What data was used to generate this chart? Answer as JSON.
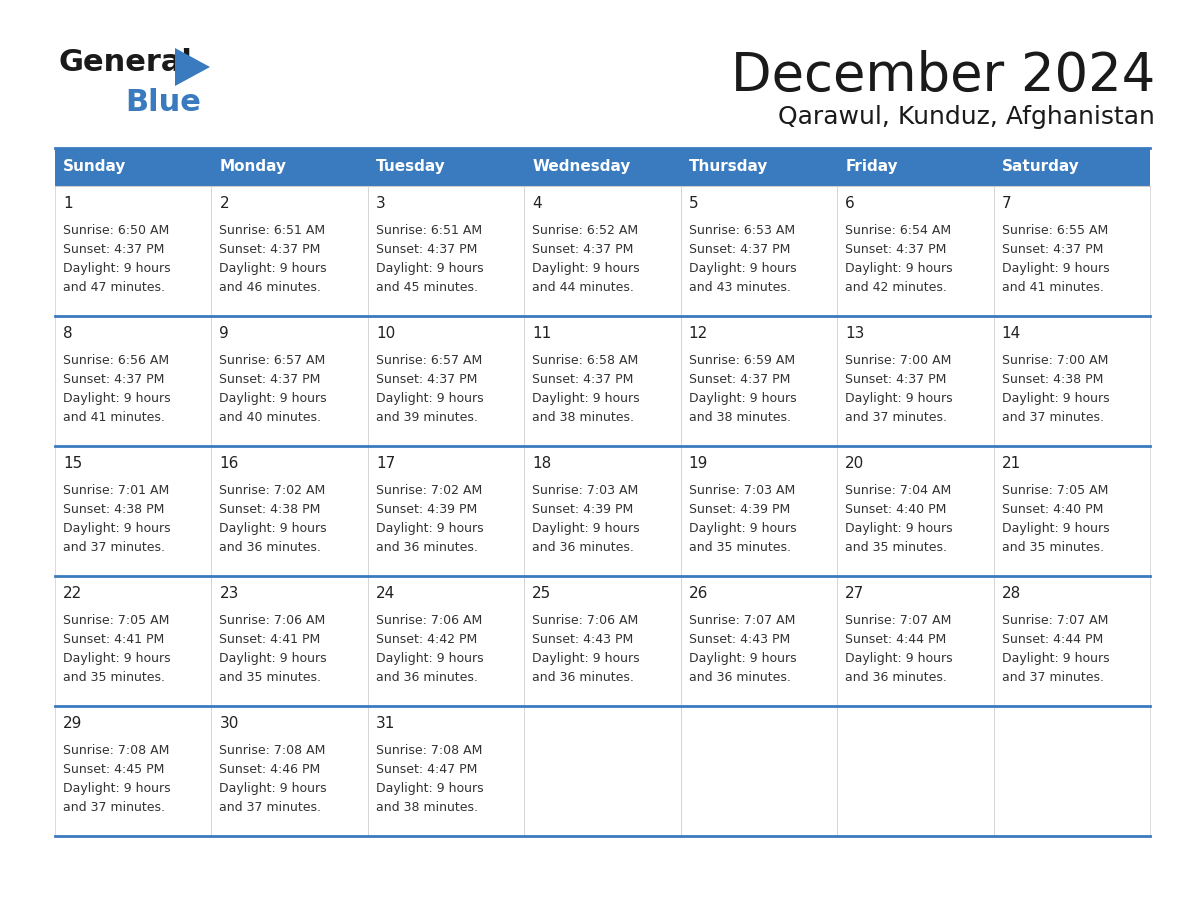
{
  "title": "December 2024",
  "subtitle": "Qarawul, Kunduz, Afghanistan",
  "header_color": "#3a7bbf",
  "header_text_color": "#ffffff",
  "cell_bg_color": "#ffffff",
  "text_color": "#333333",
  "border_color": "#3a7bbf",
  "thin_border_color": "#cccccc",
  "days_of_week": [
    "Sunday",
    "Monday",
    "Tuesday",
    "Wednesday",
    "Thursday",
    "Friday",
    "Saturday"
  ],
  "weeks": [
    [
      {
        "day": 1,
        "sunrise": "6:50 AM",
        "sunset": "4:37 PM",
        "daylight": "9 hours and 47 minutes."
      },
      {
        "day": 2,
        "sunrise": "6:51 AM",
        "sunset": "4:37 PM",
        "daylight": "9 hours and 46 minutes."
      },
      {
        "day": 3,
        "sunrise": "6:51 AM",
        "sunset": "4:37 PM",
        "daylight": "9 hours and 45 minutes."
      },
      {
        "day": 4,
        "sunrise": "6:52 AM",
        "sunset": "4:37 PM",
        "daylight": "9 hours and 44 minutes."
      },
      {
        "day": 5,
        "sunrise": "6:53 AM",
        "sunset": "4:37 PM",
        "daylight": "9 hours and 43 minutes."
      },
      {
        "day": 6,
        "sunrise": "6:54 AM",
        "sunset": "4:37 PM",
        "daylight": "9 hours and 42 minutes."
      },
      {
        "day": 7,
        "sunrise": "6:55 AM",
        "sunset": "4:37 PM",
        "daylight": "9 hours and 41 minutes."
      }
    ],
    [
      {
        "day": 8,
        "sunrise": "6:56 AM",
        "sunset": "4:37 PM",
        "daylight": "9 hours and 41 minutes."
      },
      {
        "day": 9,
        "sunrise": "6:57 AM",
        "sunset": "4:37 PM",
        "daylight": "9 hours and 40 minutes."
      },
      {
        "day": 10,
        "sunrise": "6:57 AM",
        "sunset": "4:37 PM",
        "daylight": "9 hours and 39 minutes."
      },
      {
        "day": 11,
        "sunrise": "6:58 AM",
        "sunset": "4:37 PM",
        "daylight": "9 hours and 38 minutes."
      },
      {
        "day": 12,
        "sunrise": "6:59 AM",
        "sunset": "4:37 PM",
        "daylight": "9 hours and 38 minutes."
      },
      {
        "day": 13,
        "sunrise": "7:00 AM",
        "sunset": "4:37 PM",
        "daylight": "9 hours and 37 minutes."
      },
      {
        "day": 14,
        "sunrise": "7:00 AM",
        "sunset": "4:38 PM",
        "daylight": "9 hours and 37 minutes."
      }
    ],
    [
      {
        "day": 15,
        "sunrise": "7:01 AM",
        "sunset": "4:38 PM",
        "daylight": "9 hours and 37 minutes."
      },
      {
        "day": 16,
        "sunrise": "7:02 AM",
        "sunset": "4:38 PM",
        "daylight": "9 hours and 36 minutes."
      },
      {
        "day": 17,
        "sunrise": "7:02 AM",
        "sunset": "4:39 PM",
        "daylight": "9 hours and 36 minutes."
      },
      {
        "day": 18,
        "sunrise": "7:03 AM",
        "sunset": "4:39 PM",
        "daylight": "9 hours and 36 minutes."
      },
      {
        "day": 19,
        "sunrise": "7:03 AM",
        "sunset": "4:39 PM",
        "daylight": "9 hours and 35 minutes."
      },
      {
        "day": 20,
        "sunrise": "7:04 AM",
        "sunset": "4:40 PM",
        "daylight": "9 hours and 35 minutes."
      },
      {
        "day": 21,
        "sunrise": "7:05 AM",
        "sunset": "4:40 PM",
        "daylight": "9 hours and 35 minutes."
      }
    ],
    [
      {
        "day": 22,
        "sunrise": "7:05 AM",
        "sunset": "4:41 PM",
        "daylight": "9 hours and 35 minutes."
      },
      {
        "day": 23,
        "sunrise": "7:06 AM",
        "sunset": "4:41 PM",
        "daylight": "9 hours and 35 minutes."
      },
      {
        "day": 24,
        "sunrise": "7:06 AM",
        "sunset": "4:42 PM",
        "daylight": "9 hours and 36 minutes."
      },
      {
        "day": 25,
        "sunrise": "7:06 AM",
        "sunset": "4:43 PM",
        "daylight": "9 hours and 36 minutes."
      },
      {
        "day": 26,
        "sunrise": "7:07 AM",
        "sunset": "4:43 PM",
        "daylight": "9 hours and 36 minutes."
      },
      {
        "day": 27,
        "sunrise": "7:07 AM",
        "sunset": "4:44 PM",
        "daylight": "9 hours and 36 minutes."
      },
      {
        "day": 28,
        "sunrise": "7:07 AM",
        "sunset": "4:44 PM",
        "daylight": "9 hours and 37 minutes."
      }
    ],
    [
      {
        "day": 29,
        "sunrise": "7:08 AM",
        "sunset": "4:45 PM",
        "daylight": "9 hours and 37 minutes."
      },
      {
        "day": 30,
        "sunrise": "7:08 AM",
        "sunset": "4:46 PM",
        "daylight": "9 hours and 37 minutes."
      },
      {
        "day": 31,
        "sunrise": "7:08 AM",
        "sunset": "4:47 PM",
        "daylight": "9 hours and 38 minutes."
      },
      null,
      null,
      null,
      null
    ]
  ]
}
